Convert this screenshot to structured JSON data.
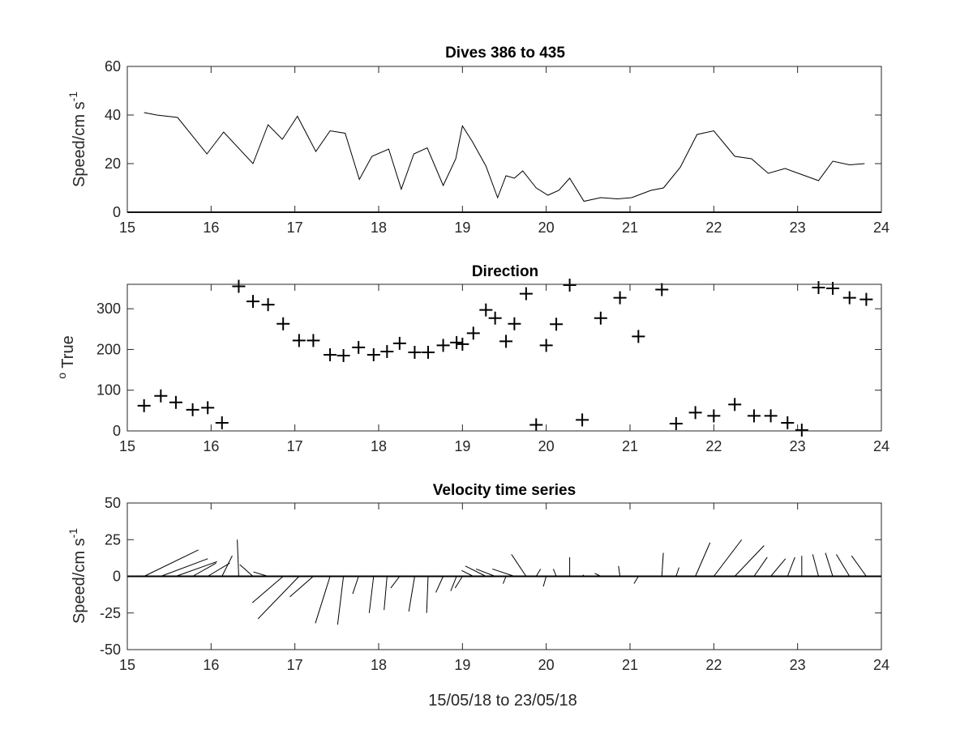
{
  "chart_data": [
    {
      "type": "line",
      "title": "Dives 386 to 435",
      "ylabel": "Speed/cm s",
      "ylabel_superscript": "-1",
      "xlim": [
        15,
        24
      ],
      "ylim": [
        0,
        60
      ],
      "xticks": [
        15,
        16,
        17,
        18,
        19,
        20,
        21,
        22,
        23,
        24
      ],
      "yticks": [
        0,
        20,
        40,
        60
      ],
      "grid": false,
      "series": [
        {
          "x": [
            15.2,
            15.35,
            15.6,
            15.95,
            16.15,
            16.5,
            16.68,
            16.85,
            17.03,
            17.25,
            17.42,
            17.6,
            17.77,
            17.92,
            18.12,
            18.27,
            18.42,
            18.58,
            18.77,
            18.92,
            19.0,
            19.12,
            19.28,
            19.42,
            19.52,
            19.62,
            19.72,
            19.88,
            20.02,
            20.15,
            20.28,
            20.45,
            20.65,
            20.85,
            21.02,
            21.25,
            21.4,
            21.6,
            21.8,
            22.0,
            22.25,
            22.45,
            22.65,
            22.85,
            23.05,
            23.25,
            23.42,
            23.62,
            23.8
          ],
          "y": [
            41,
            40,
            39,
            24,
            33,
            20,
            36,
            30,
            39.5,
            25,
            33.5,
            32.5,
            13.5,
            23,
            26,
            9.5,
            24,
            26.5,
            11,
            22,
            35.5,
            29,
            19,
            6,
            15,
            14,
            17,
            10,
            7,
            9,
            14,
            4.5,
            6,
            5.5,
            6,
            9,
            10,
            18.5,
            32,
            33.5,
            23,
            22,
            16,
            18,
            15.5,
            13,
            21,
            19.5,
            20
          ]
        }
      ]
    },
    {
      "type": "scatter",
      "title": "Direction",
      "ylabel": "True",
      "ylabel_prefix": "o",
      "xlim": [
        15,
        24
      ],
      "ylim": [
        0,
        360
      ],
      "xticks": [
        15,
        16,
        17,
        18,
        19,
        20,
        21,
        22,
        23,
        24
      ],
      "yticks": [
        0,
        100,
        200,
        300
      ],
      "marker": "+",
      "grid": false,
      "series": [
        {
          "x": [
            15.2,
            15.4,
            15.58,
            15.78,
            15.96,
            16.13,
            16.33,
            16.5,
            16.68,
            16.86,
            17.05,
            17.22,
            17.42,
            17.58,
            17.76,
            17.94,
            18.1,
            18.25,
            18.43,
            18.59,
            18.77,
            18.93,
            19.0,
            19.13,
            19.28,
            19.39,
            19.52,
            19.62,
            19.76,
            19.88,
            20.0,
            20.12,
            20.28,
            20.43,
            20.65,
            20.88,
            21.1,
            21.38,
            21.55,
            21.78,
            22.0,
            22.25,
            22.48,
            22.68,
            22.88,
            23.05,
            23.25,
            23.42,
            23.62,
            23.82
          ],
          "y": [
            62,
            86,
            70,
            52,
            57,
            20,
            355,
            318,
            310,
            263,
            222,
            222,
            187,
            185,
            205,
            187,
            195,
            215,
            193,
            193,
            210,
            217,
            213,
            240,
            297,
            277,
            220,
            263,
            337,
            15,
            210,
            262,
            358,
            27,
            277,
            327,
            232,
            347,
            18,
            45,
            37,
            65,
            37,
            37,
            20,
            2,
            352,
            350,
            327,
            323
          ]
        }
      ]
    },
    {
      "type": "stick",
      "title": "Velocity time series",
      "ylabel": "Speed/cm s",
      "ylabel_superscript": "-1",
      "xlabel": "15/05/18 to 23/05/18",
      "xlim": [
        15,
        24
      ],
      "ylim": [
        -50,
        50
      ],
      "xticks": [
        15,
        16,
        17,
        18,
        19,
        20,
        21,
        22,
        23,
        24
      ],
      "yticks": [
        -50,
        -25,
        0,
        25,
        50
      ],
      "grid": false,
      "time": [
        15.2,
        15.4,
        15.58,
        15.78,
        15.96,
        16.13,
        16.33,
        16.5,
        16.68,
        16.86,
        17.05,
        17.22,
        17.42,
        17.58,
        17.76,
        17.94,
        18.1,
        18.25,
        18.43,
        18.59,
        18.77,
        18.93,
        19.0,
        19.13,
        19.28,
        19.39,
        19.52,
        19.62,
        19.76,
        19.88,
        20.0,
        20.12,
        20.28,
        20.43,
        20.65,
        20.88,
        21.1,
        21.38,
        21.55,
        21.78,
        22.0,
        22.25,
        22.48,
        22.68,
        22.88,
        23.05,
        23.25,
        23.42,
        23.62,
        23.82
      ],
      "u": [
        37,
        32,
        28,
        16,
        15,
        7,
        -1,
        -9,
        -10,
        -21,
        -28,
        -16,
        -10,
        -4,
        -4,
        -3,
        -2,
        -6,
        -4,
        -1,
        -5,
        -4,
        -5,
        -8,
        -14,
        -13,
        -2,
        -15,
        -10,
        3,
        -2,
        -2,
        0,
        1,
        -4,
        -1,
        -3,
        1,
        2,
        10,
        19,
        20,
        9,
        10,
        5,
        0,
        -4,
        -5,
        -9,
        -10
      ],
      "v": [
        18,
        12,
        10,
        9,
        9,
        14,
        25,
        8,
        3,
        -18,
        -29,
        -14,
        -32,
        -33,
        -12,
        -25,
        -23,
        -8,
        -24,
        -25,
        -11,
        -10,
        -8,
        4,
        7,
        5,
        -5,
        5,
        15,
        5,
        -7,
        5,
        13,
        1,
        2,
        7,
        -5,
        16,
        6,
        23,
        25,
        21,
        13,
        12,
        13,
        14,
        15,
        16,
        15,
        14
      ]
    }
  ]
}
